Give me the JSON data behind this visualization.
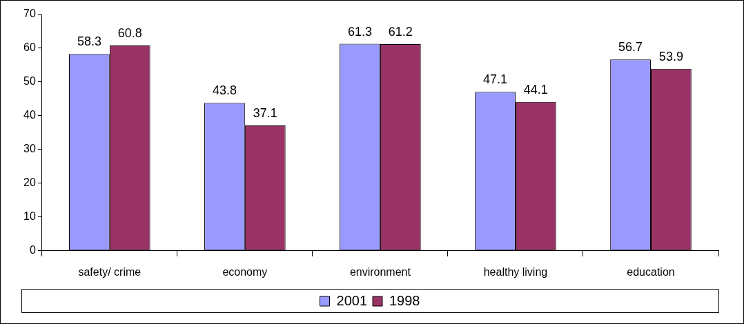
{
  "chart_data": {
    "type": "bar",
    "categories": [
      "safety/ crime",
      "economy",
      "environment",
      "healthy living",
      "education"
    ],
    "series": [
      {
        "name": "2001",
        "color": "#9999ff",
        "values": [
          58.3,
          43.8,
          61.3,
          47.1,
          56.7
        ]
      },
      {
        "name": "1998",
        "color": "#993366",
        "values": [
          60.8,
          37.1,
          61.2,
          44.1,
          53.9
        ]
      }
    ],
    "ylim": [
      0,
      70
    ],
    "yticks": [
      0,
      10,
      20,
      30,
      40,
      50,
      60,
      70
    ],
    "grid": false,
    "legend": "bottom",
    "data_labels": true
  }
}
